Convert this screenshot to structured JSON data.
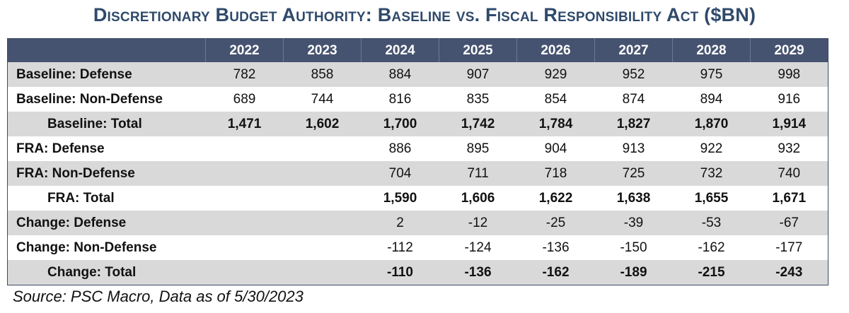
{
  "title": "Discretionary Budget Authority: Baseline vs. Fiscal Responsibility Act ($BN)",
  "source": "Source: PSC Macro, Data as of 5/30/2023",
  "chart_data": {
    "type": "table",
    "title": "Discretionary Budget Authority: Baseline vs. Fiscal Responsibility Act ($BN)",
    "columns": [
      "",
      "2022",
      "2023",
      "2024",
      "2025",
      "2026",
      "2027",
      "2028",
      "2029"
    ],
    "rows": [
      {
        "label": "Baseline: Defense",
        "total": false,
        "values": [
          "782",
          "858",
          "884",
          "907",
          "929",
          "952",
          "975",
          "998"
        ]
      },
      {
        "label": "Baseline: Non-Defense",
        "total": false,
        "values": [
          "689",
          "744",
          "816",
          "835",
          "854",
          "874",
          "894",
          "916"
        ]
      },
      {
        "label": "Baseline: Total",
        "total": true,
        "values": [
          "1,471",
          "1,602",
          "1,700",
          "1,742",
          "1,784",
          "1,827",
          "1,870",
          "1,914"
        ]
      },
      {
        "label": "FRA: Defense",
        "total": false,
        "values": [
          "",
          "",
          "886",
          "895",
          "904",
          "913",
          "922",
          "932"
        ]
      },
      {
        "label": "FRA: Non-Defense",
        "total": false,
        "values": [
          "",
          "",
          "704",
          "711",
          "718",
          "725",
          "732",
          "740"
        ]
      },
      {
        "label": "FRA: Total",
        "total": true,
        "values": [
          "",
          "",
          "1,590",
          "1,606",
          "1,622",
          "1,638",
          "1,655",
          "1,671"
        ]
      },
      {
        "label": "Change: Defense",
        "total": false,
        "values": [
          "",
          "",
          "2",
          "-12",
          "-25",
          "-39",
          "-53",
          "-67"
        ]
      },
      {
        "label": "Change: Non-Defense",
        "total": false,
        "values": [
          "",
          "",
          "-112",
          "-124",
          "-136",
          "-150",
          "-162",
          "-177"
        ]
      },
      {
        "label": "Change: Total",
        "total": true,
        "values": [
          "",
          "",
          "-110",
          "-136",
          "-162",
          "-189",
          "-215",
          "-243"
        ]
      }
    ]
  },
  "colors": {
    "title": "#2f4a6b",
    "header_background": "#465370",
    "header_text": "#ffffff",
    "shaded_row": "#d9d9d9"
  }
}
